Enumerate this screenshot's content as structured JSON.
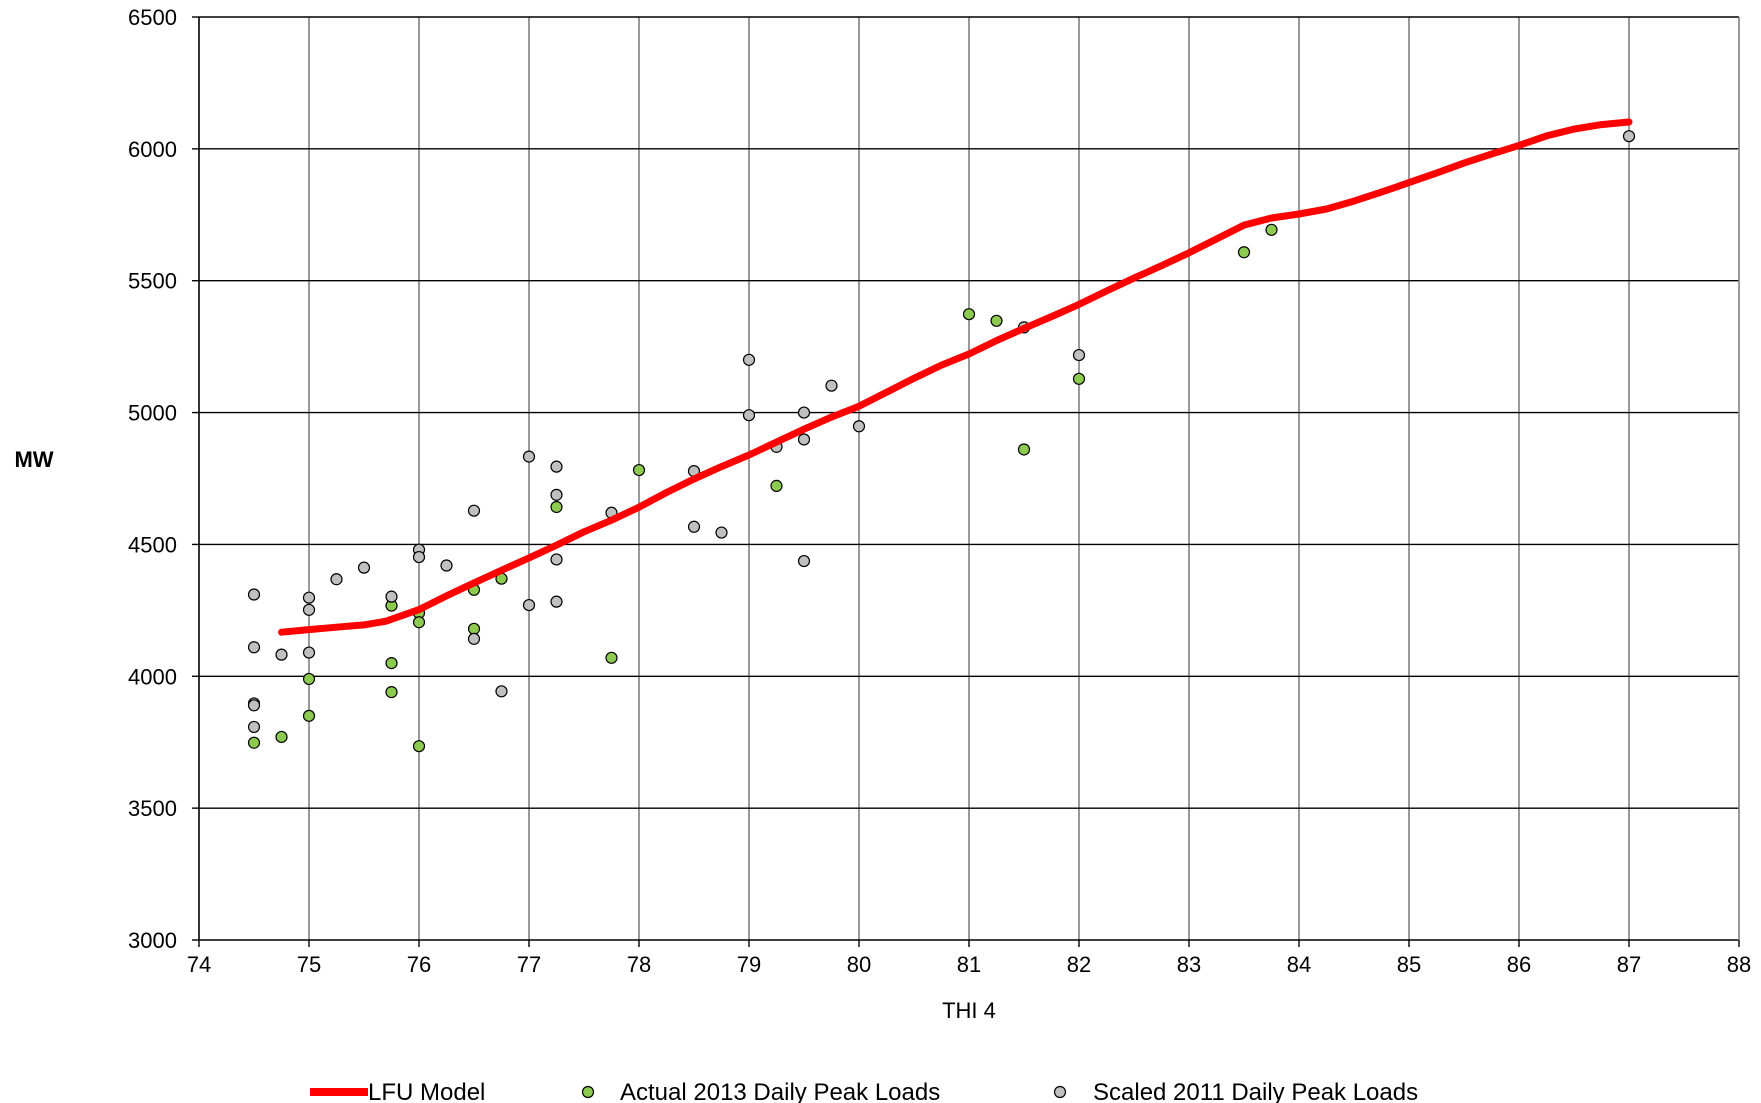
{
  "chart_data": {
    "type": "scatter",
    "xlabel": "THI 4",
    "ylabel": "MW",
    "xlim": [
      74,
      88
    ],
    "ylim": [
      3000,
      6500
    ],
    "xticks": [
      74,
      75,
      76,
      77,
      78,
      79,
      80,
      81,
      82,
      83,
      84,
      85,
      86,
      87,
      88
    ],
    "yticks": [
      3000,
      3500,
      4000,
      4500,
      5000,
      5500,
      6000,
      6500
    ],
    "grid": true,
    "legend_position": "bottom",
    "series": [
      {
        "name": "LFU Model",
        "kind": "line",
        "color": "#ff0000",
        "x": [
          74.75,
          75.0,
          75.25,
          75.5,
          75.7,
          76.0,
          76.25,
          76.5,
          76.75,
          77.0,
          77.25,
          77.5,
          77.75,
          78.0,
          78.25,
          78.5,
          78.75,
          79.0,
          79.25,
          79.5,
          79.75,
          80.0,
          80.25,
          80.5,
          80.75,
          81.0,
          81.25,
          81.5,
          81.75,
          82.0,
          82.25,
          82.5,
          82.75,
          83.0,
          83.25,
          83.5,
          83.75,
          84.0,
          84.25,
          84.5,
          84.75,
          85.0,
          85.25,
          85.5,
          85.75,
          86.0,
          86.25,
          86.5,
          86.75,
          87.0
        ],
        "y": [
          4167,
          4177,
          4186,
          4195,
          4209,
          4253,
          4305,
          4354,
          4402,
          4449,
          4497,
          4548,
          4592,
          4641,
          4697,
          4748,
          4795,
          4839,
          4888,
          4937,
          4983,
          5024,
          5077,
          5130,
          5180,
          5222,
          5273,
          5319,
          5364,
          5410,
          5461,
          5510,
          5557,
          5606,
          5658,
          5711,
          5738,
          5753,
          5772,
          5802,
          5836,
          5872,
          5908,
          5946,
          5980,
          6013,
          6049,
          6075,
          6092,
          6102
        ]
      },
      {
        "name": "Actual 2013 Daily Peak Loads",
        "kind": "scatter",
        "color": "#8ccb4f",
        "points": [
          [
            74.5,
            3748
          ],
          [
            74.75,
            3770
          ],
          [
            75.0,
            3990
          ],
          [
            75.0,
            3850
          ],
          [
            75.75,
            4268
          ],
          [
            75.75,
            4050
          ],
          [
            75.75,
            3940
          ],
          [
            76.0,
            4240
          ],
          [
            76.0,
            4205
          ],
          [
            76.0,
            3735
          ],
          [
            76.5,
            4328
          ],
          [
            76.5,
            4180
          ],
          [
            76.75,
            4370
          ],
          [
            77.25,
            4642
          ],
          [
            77.75,
            4070
          ],
          [
            78.0,
            4782
          ],
          [
            79.25,
            4722
          ],
          [
            81.0,
            5373
          ],
          [
            81.25,
            5348
          ],
          [
            81.5,
            4860
          ],
          [
            82.0,
            5128
          ],
          [
            83.5,
            5608
          ],
          [
            83.75,
            5693
          ]
        ]
      },
      {
        "name": "Scaled 2011 Daily Peak Loads",
        "kind": "scatter",
        "color": "#c0c0c0",
        "points": [
          [
            74.5,
            4310
          ],
          [
            74.5,
            4110
          ],
          [
            74.5,
            3897
          ],
          [
            74.5,
            3890
          ],
          [
            74.5,
            3808
          ],
          [
            74.75,
            4082
          ],
          [
            75.0,
            4298
          ],
          [
            75.0,
            4252
          ],
          [
            75.0,
            4090
          ],
          [
            75.25,
            4368
          ],
          [
            75.5,
            4412
          ],
          [
            75.75,
            4302
          ],
          [
            76.0,
            4480
          ],
          [
            76.0,
            4452
          ],
          [
            76.25,
            4420
          ],
          [
            76.5,
            4628
          ],
          [
            76.5,
            4142
          ],
          [
            76.75,
            3943
          ],
          [
            77.0,
            4833
          ],
          [
            77.0,
            4270
          ],
          [
            77.25,
            4795
          ],
          [
            77.25,
            4688
          ],
          [
            77.25,
            4443
          ],
          [
            77.25,
            4283
          ],
          [
            77.75,
            4620
          ],
          [
            78.5,
            4778
          ],
          [
            78.5,
            4567
          ],
          [
            78.75,
            4545
          ],
          [
            79.0,
            5200
          ],
          [
            79.0,
            4990
          ],
          [
            79.25,
            4870
          ],
          [
            79.5,
            5000
          ],
          [
            79.5,
            4898
          ],
          [
            79.5,
            4437
          ],
          [
            79.75,
            5102
          ],
          [
            80.0,
            4948
          ],
          [
            81.5,
            5323
          ],
          [
            82.0,
            5218
          ],
          [
            87.0,
            6048
          ]
        ]
      }
    ]
  },
  "legend": [
    {
      "label": "LFU Model",
      "icon": "line"
    },
    {
      "label": "Actual 2013 Daily Peak Loads",
      "icon": "green-dot"
    },
    {
      "label": "Scaled 2011 Daily Peak Loads",
      "icon": "grey-dot"
    }
  ]
}
